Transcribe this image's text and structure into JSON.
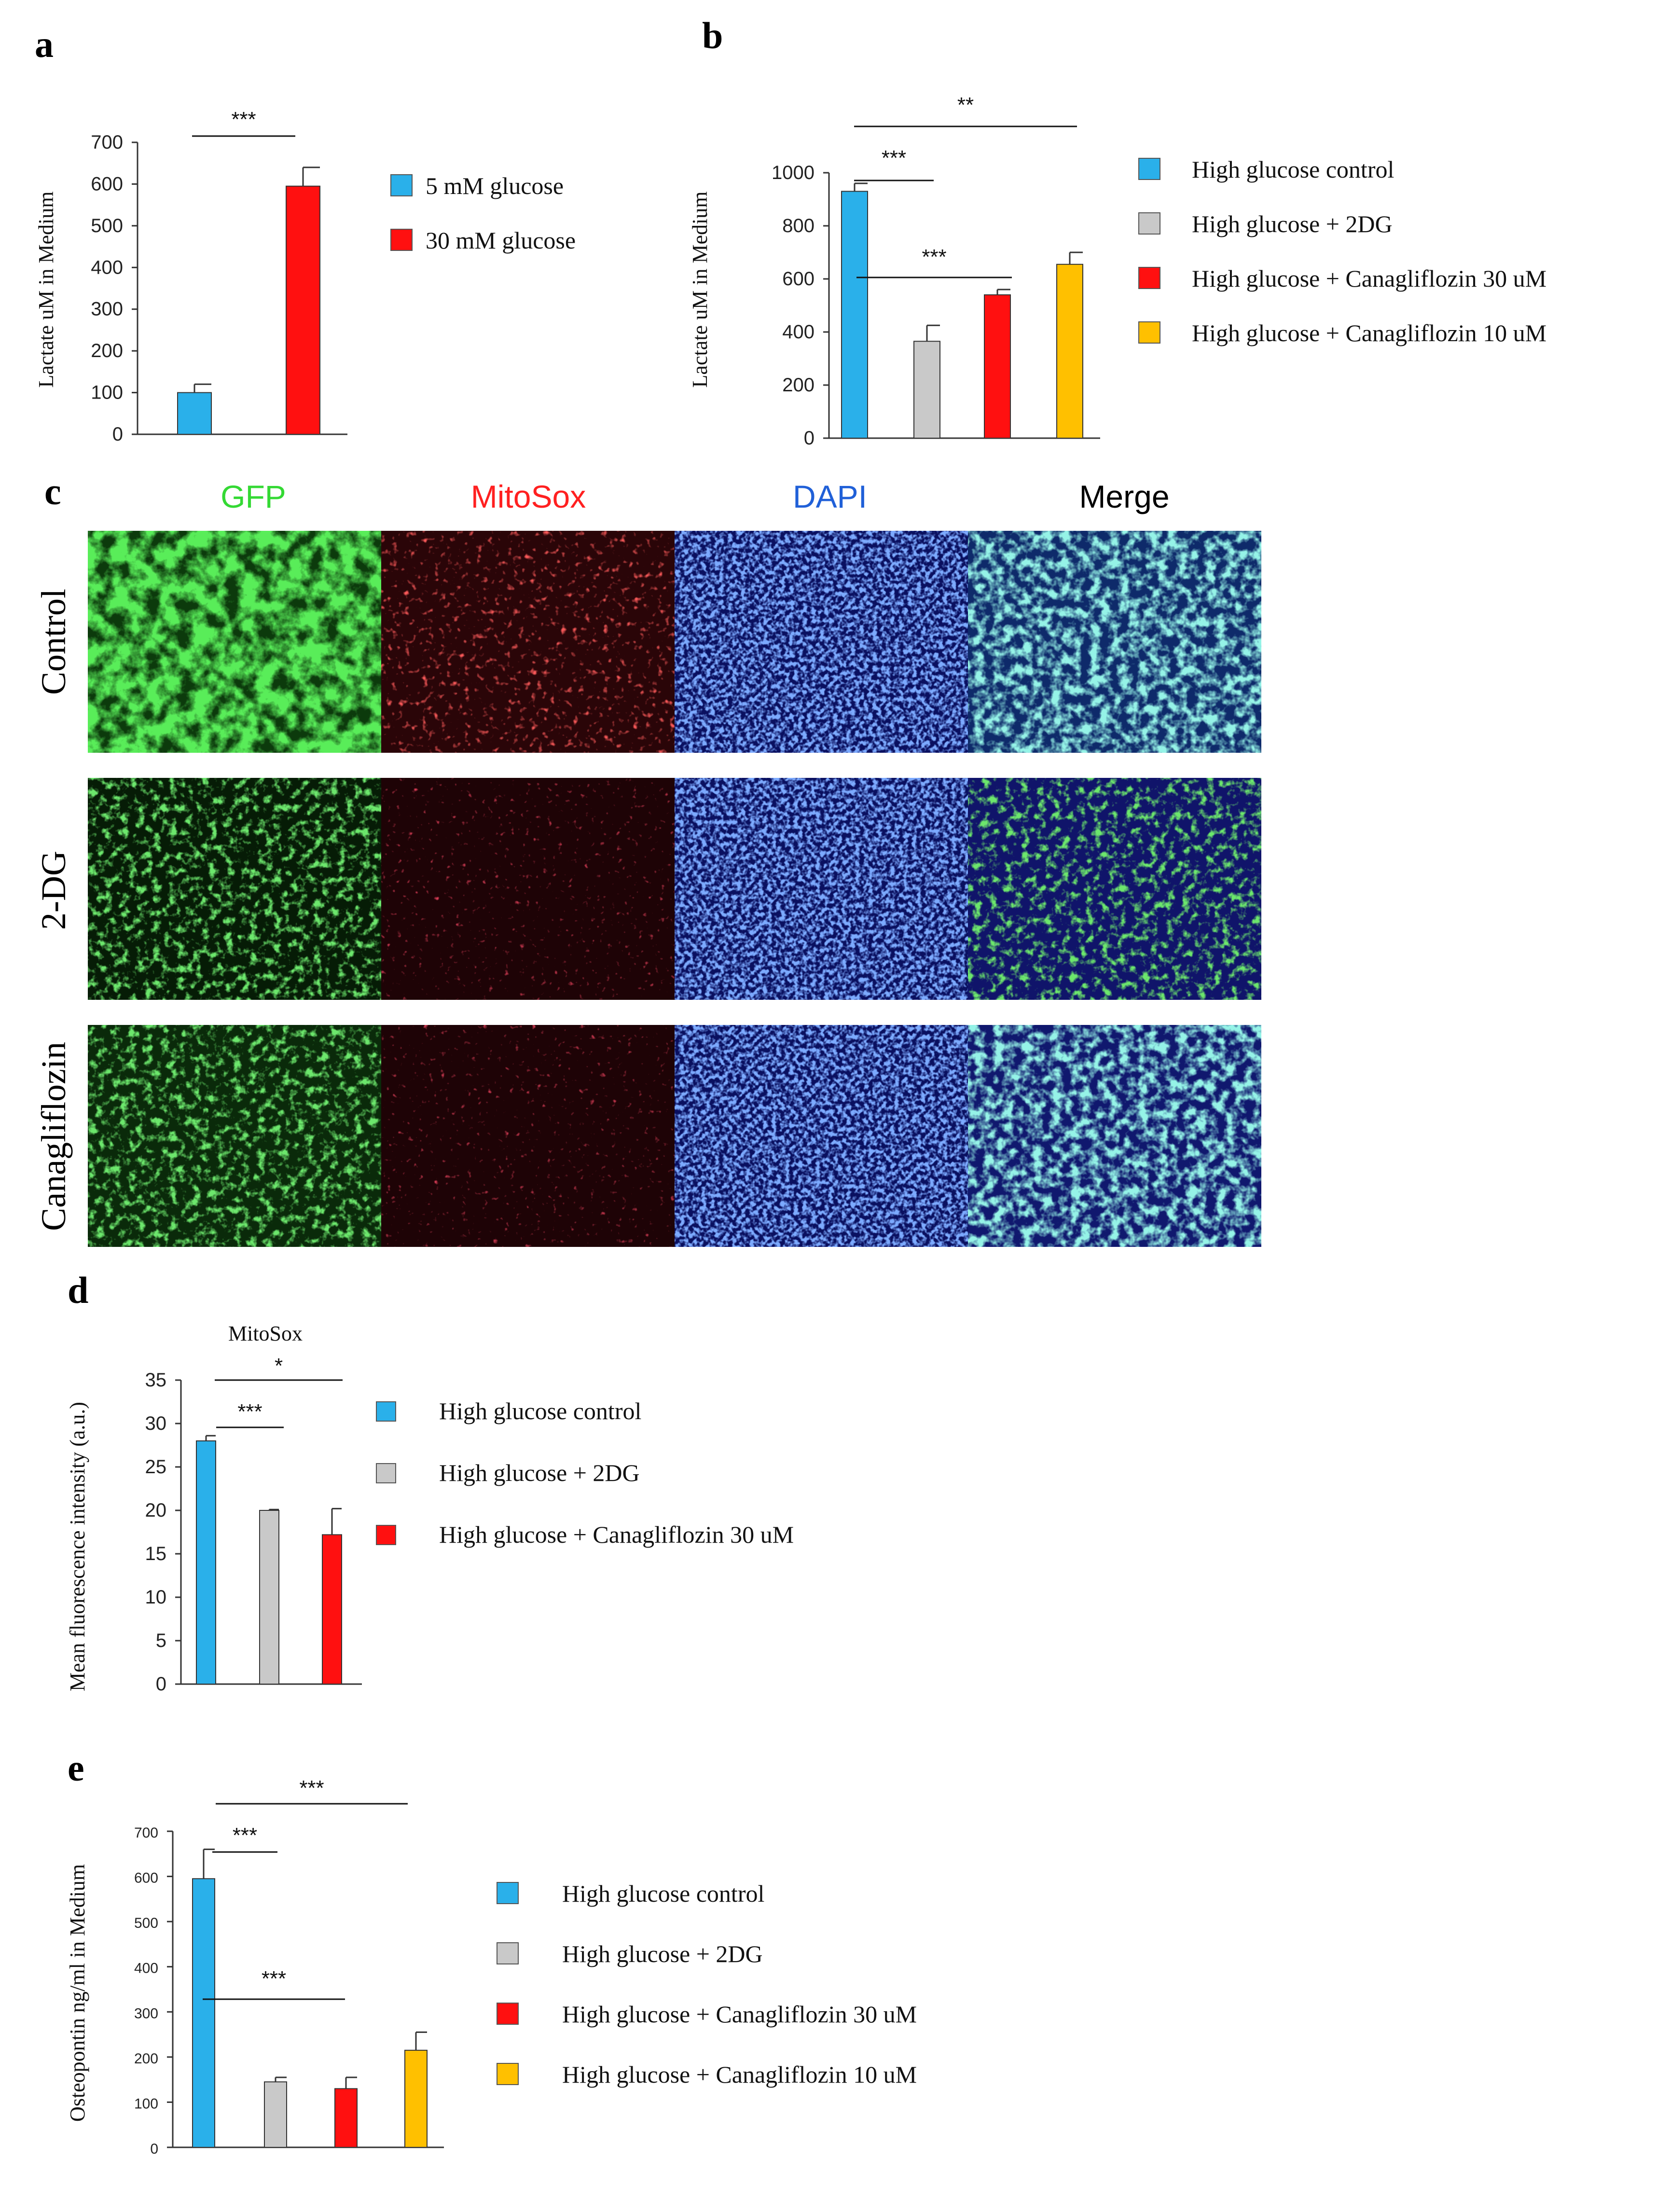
{
  "panels": {
    "a": "a",
    "b": "b",
    "c": "c",
    "d": "d",
    "e": "e"
  },
  "colors": {
    "blue": "#2ab0ea",
    "grey": "#c9c9c9",
    "red": "#ff1010",
    "orange": "#ffc000",
    "gfp": "#34d934",
    "mitosox": "#ff2020",
    "dapi": "#2060d8"
  },
  "microscopy": {
    "columns": [
      "GFP",
      "MitoSox",
      "DAPI",
      "Merge"
    ],
    "rows": [
      "Control",
      "2-DG",
      "Canagliflozin"
    ]
  },
  "chart_data": [
    {
      "id": "a",
      "type": "bar",
      "title": "",
      "ylabel": "Lactate uM in Medium",
      "ylim": [
        0,
        700
      ],
      "yticks": [
        0,
        100,
        200,
        300,
        400,
        500,
        600,
        700
      ],
      "series": [
        {
          "name": "5 mM glucose",
          "color": "#2ab0ea",
          "value": 100,
          "error": 20
        },
        {
          "name": "30 mM glucose",
          "color": "#ff1010",
          "value": 595,
          "error": 45
        }
      ],
      "significance": [
        {
          "label": "***",
          "from": 0,
          "to": 1
        }
      ]
    },
    {
      "id": "b",
      "type": "bar",
      "title": "",
      "ylabel": "Lactate uM in Medium",
      "ylim": [
        0,
        1000
      ],
      "yticks": [
        0,
        200,
        400,
        600,
        800,
        1000
      ],
      "series": [
        {
          "name": "High glucose control",
          "color": "#2ab0ea",
          "value": 930,
          "error": 30
        },
        {
          "name": "High glucose + 2DG",
          "color": "#c9c9c9",
          "value": 365,
          "error": 60
        },
        {
          "name": "High glucose + Canagliflozin  30 uM",
          "color": "#ff1010",
          "value": 540,
          "error": 20
        },
        {
          "name": "High glucose + Canagliflozin  10 uM",
          "color": "#ffc000",
          "value": 655,
          "error": 45
        }
      ],
      "significance": [
        {
          "label": "**",
          "from": 0,
          "to": 3,
          "level": 1180
        },
        {
          "label": "***",
          "from": 0,
          "to": 1,
          "level": 960
        },
        {
          "label": "***",
          "from": 0,
          "to": 2,
          "level": 600
        }
      ]
    },
    {
      "id": "d",
      "type": "bar",
      "title": "MitoSox",
      "ylabel": "Mean fluorescence intensity (a.u.)",
      "ylim": [
        0,
        35
      ],
      "yticks": [
        0,
        5,
        10,
        15,
        20,
        25,
        30,
        35
      ],
      "series": [
        {
          "name": "High glucose control",
          "color": "#2ab0ea",
          "value": 28,
          "error": 0.6
        },
        {
          "name": "High glucose + 2DG",
          "color": "#c9c9c9",
          "value": 20,
          "error": 0.1
        },
        {
          "name": "High glucose + Canagliflozin  30 uM",
          "color": "#ff1010",
          "value": 17.2,
          "error": 3
        }
      ],
      "significance": [
        {
          "label": "*",
          "from": 0,
          "to": 2,
          "level": 35
        },
        {
          "label": "***",
          "from": 0,
          "to": 1,
          "level": 31
        }
      ]
    },
    {
      "id": "e",
      "type": "bar",
      "title": "",
      "ylabel": "Osteopontin ng/ml in Medium",
      "ylim": [
        0,
        700
      ],
      "yticks": [
        0,
        100,
        200,
        300,
        400,
        500,
        600,
        700
      ],
      "series": [
        {
          "name": "High glucose control",
          "color": "#2ab0ea",
          "value": 595,
          "error": 65
        },
        {
          "name": "High glucose + 2DG",
          "color": "#c9c9c9",
          "value": 145,
          "error": 10
        },
        {
          "name": "High glucose + Canagliflozin  30 uM",
          "color": "#ff1010",
          "value": 130,
          "error": 25
        },
        {
          "name": "High glucose + Canagliflozin  10 uM",
          "color": "#ffc000",
          "value": 215,
          "error": 40
        }
      ],
      "significance": [
        {
          "label": "***",
          "from": 0,
          "to": 3,
          "level": 770
        },
        {
          "label": "***",
          "from": 0,
          "to": 1,
          "level": 685
        },
        {
          "label": "***",
          "from": 0,
          "to": 2,
          "level": 335
        }
      ]
    }
  ]
}
